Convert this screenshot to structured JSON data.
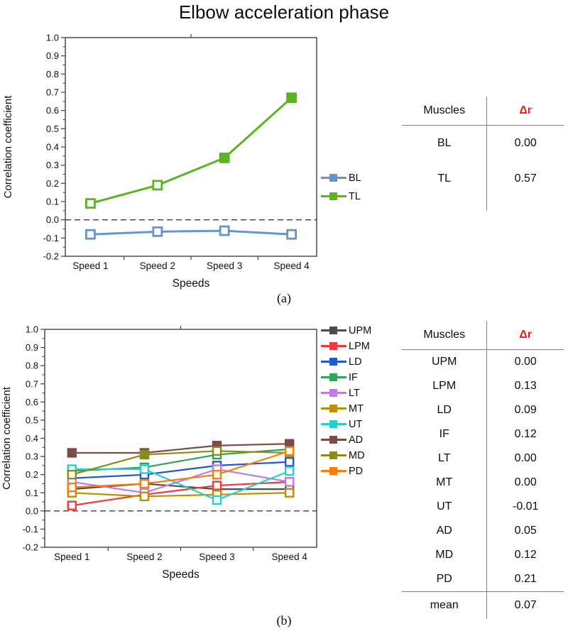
{
  "title": "Elbow acceleration phase",
  "colors": {
    "delta_r_red": "#ee1c1c",
    "axis": "#4d4d4d",
    "table_line": "#808080",
    "zero_line": "#3c3c3c"
  },
  "figures": [
    {
      "sublabel": "(a)",
      "table": {
        "col_headers": [
          "Muscles",
          "Δr"
        ],
        "rows": [
          {
            "muscle": "BL",
            "dr": "0.00"
          },
          {
            "muscle": "TL",
            "dr": "0.57"
          }
        ],
        "footer": null
      }
    },
    {
      "sublabel": "(b)",
      "table": {
        "col_headers": [
          "Muscles",
          "Δr"
        ],
        "rows": [
          {
            "muscle": "UPM",
            "dr": "0.00"
          },
          {
            "muscle": "LPM",
            "dr": "0.13"
          },
          {
            "muscle": "LD",
            "dr": "0.09"
          },
          {
            "muscle": "IF",
            "dr": "0.12"
          },
          {
            "muscle": "LT",
            "dr": "0.00"
          },
          {
            "muscle": "MT",
            "dr": "0.00"
          },
          {
            "muscle": "UT",
            "dr": "-0.01"
          },
          {
            "muscle": "AD",
            "dr": "0.05"
          },
          {
            "muscle": "MD",
            "dr": "0.12"
          },
          {
            "muscle": "PD",
            "dr": "0.21"
          }
        ],
        "footer": {
          "muscle": "mean",
          "dr": "0.07"
        }
      }
    }
  ],
  "chart_data": [
    {
      "type": "line",
      "categories": [
        "Speed 1",
        "Speed 2",
        "Speed 3",
        "Speed 4"
      ],
      "xlabel": "Speeds",
      "ylabel": "Correlation coefficient",
      "ylim": [
        -0.2,
        1.0
      ],
      "ytick_step": 0.1,
      "zero_dashed_line": true,
      "legend_position": "right",
      "line_width": 3,
      "marker_size": 12,
      "marker_stroke": 2.8,
      "series": [
        {
          "name": "BL",
          "color": "#6495cf",
          "values": [
            -0.08,
            -0.065,
            -0.06,
            -0.08
          ],
          "filled": [
            false,
            false,
            false,
            false
          ]
        },
        {
          "name": "TL",
          "color": "#5db321",
          "values": [
            0.09,
            0.19,
            0.34,
            0.67
          ],
          "filled": [
            false,
            false,
            true,
            true
          ]
        }
      ]
    },
    {
      "type": "line",
      "categories": [
        "Speed 1",
        "Speed 2",
        "Speed 3",
        "Speed 4"
      ],
      "xlabel": "Speeds",
      "ylabel": "Correlation coefficient",
      "ylim": [
        -0.2,
        1.0
      ],
      "ytick_step": 0.1,
      "zero_dashed_line": true,
      "legend_position": "right",
      "line_width": 2.2,
      "marker_size": 11,
      "marker_stroke": 2.4,
      "series": [
        {
          "name": "UPM",
          "color": "#4d4d4d",
          "values": [
            0.12,
            0.15,
            0.12,
            0.12
          ],
          "filled": [
            false,
            false,
            false,
            false
          ]
        },
        {
          "name": "LPM",
          "color": "#ee3a3c",
          "values": [
            0.03,
            0.09,
            0.14,
            0.16
          ],
          "filled": [
            false,
            false,
            false,
            false
          ]
        },
        {
          "name": "LD",
          "color": "#2158cf",
          "values": [
            0.18,
            0.2,
            0.25,
            0.27
          ],
          "filled": [
            false,
            false,
            false,
            false
          ]
        },
        {
          "name": "IF",
          "color": "#2fa45f",
          "values": [
            0.22,
            0.24,
            0.31,
            0.34
          ],
          "filled": [
            false,
            false,
            false,
            false
          ]
        },
        {
          "name": "LT",
          "color": "#b980e2",
          "values": [
            0.16,
            0.1,
            0.23,
            0.16
          ],
          "filled": [
            false,
            false,
            false,
            false
          ]
        },
        {
          "name": "MT",
          "color": "#bf8f00",
          "values": [
            0.1,
            0.08,
            0.09,
            0.1
          ],
          "filled": [
            false,
            false,
            false,
            false
          ]
        },
        {
          "name": "UT",
          "color": "#28cfc7",
          "values": [
            0.23,
            0.23,
            0.06,
            0.22
          ],
          "filled": [
            false,
            false,
            false,
            false
          ]
        },
        {
          "name": "AD",
          "color": "#7d4a47",
          "values": [
            0.32,
            0.32,
            0.36,
            0.37
          ],
          "filled": [
            true,
            true,
            true,
            true
          ]
        },
        {
          "name": "MD",
          "color": "#8b8c1a",
          "values": [
            0.2,
            0.31,
            0.33,
            0.32
          ],
          "filled": [
            false,
            true,
            false,
            false
          ]
        },
        {
          "name": "PD",
          "color": "#fa7d09",
          "values": [
            0.13,
            0.15,
            0.2,
            0.33
          ],
          "filled": [
            false,
            false,
            false,
            false
          ]
        }
      ]
    }
  ]
}
